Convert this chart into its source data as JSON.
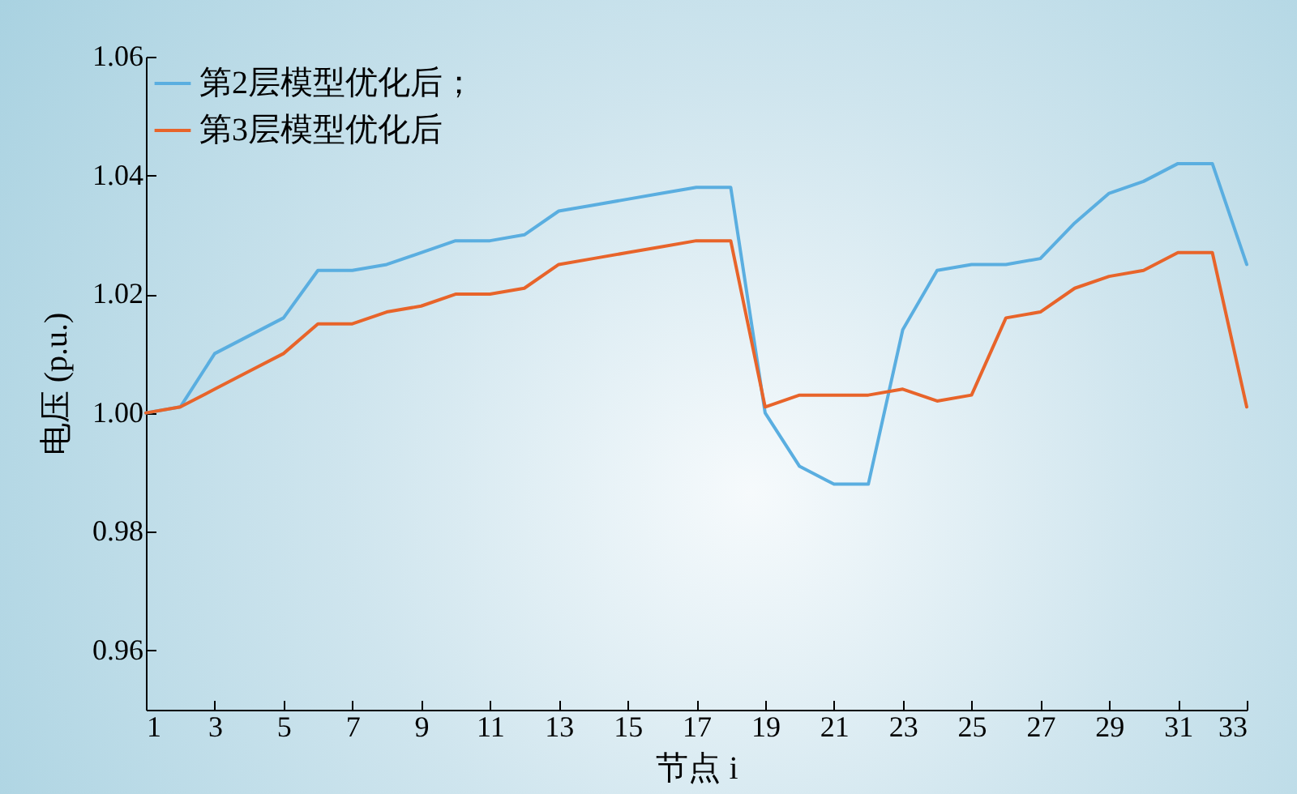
{
  "chart_data": {
    "type": "line",
    "xlabel": "节点 i",
    "ylabel": "电压 (p.u.)",
    "x": [
      1,
      2,
      3,
      4,
      5,
      6,
      7,
      8,
      9,
      10,
      11,
      12,
      13,
      14,
      15,
      16,
      17,
      18,
      19,
      20,
      21,
      22,
      23,
      24,
      25,
      26,
      27,
      28,
      29,
      30,
      31,
      32,
      33
    ],
    "series": [
      {
        "name": "第2层模型优化后；",
        "color": "#5aaee0",
        "values": [
          1.0,
          1.001,
          1.01,
          1.013,
          1.016,
          1.024,
          1.024,
          1.025,
          1.027,
          1.029,
          1.029,
          1.03,
          1.034,
          1.035,
          1.036,
          1.037,
          1.038,
          1.038,
          1.0,
          0.991,
          0.988,
          0.988,
          1.014,
          1.024,
          1.025,
          1.025,
          1.026,
          1.032,
          1.037,
          1.039,
          1.042,
          1.042,
          1.025
        ]
      },
      {
        "name": "第3层模型优化后",
        "color": "#e8642a",
        "values": [
          1.0,
          1.001,
          1.004,
          1.007,
          1.01,
          1.015,
          1.015,
          1.017,
          1.018,
          1.02,
          1.02,
          1.021,
          1.025,
          1.026,
          1.027,
          1.028,
          1.029,
          1.029,
          1.001,
          1.003,
          1.003,
          1.003,
          1.004,
          1.002,
          1.003,
          1.016,
          1.017,
          1.021,
          1.023,
          1.024,
          1.027,
          1.027,
          1.001
        ]
      }
    ],
    "xlim": [
      1,
      33
    ],
    "xticks": [
      1,
      3,
      5,
      7,
      9,
      11,
      13,
      15,
      17,
      19,
      21,
      23,
      25,
      27,
      29,
      31,
      33
    ],
    "ylim": [
      0.95,
      1.06
    ],
    "yticks": [
      0.96,
      0.98,
      {
        "value": 1,
        "label": "1.00"
      },
      1.02,
      1.04,
      1.06
    ],
    "grid": false,
    "legend": "top left",
    "marker": "none",
    "line_style": "solid"
  }
}
